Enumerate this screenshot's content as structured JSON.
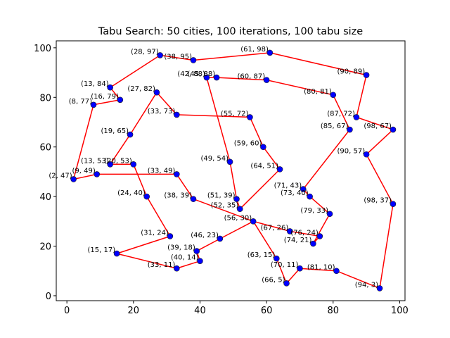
{
  "chart_data": {
    "type": "line",
    "title": "Tabu Search: 50 cities, 100 iterations, 100 tabu size",
    "xlabel": "",
    "ylabel": "",
    "xlim": [
      -3.2,
      101.6
    ],
    "ylim": [
      -2.0,
      102.8
    ],
    "xticks": [
      0,
      20,
      40,
      60,
      80,
      100
    ],
    "yticks": [
      0,
      20,
      40,
      60,
      80,
      100
    ],
    "grid": false,
    "legend": "none",
    "point_color": "#0000ff",
    "point_edge_color": "#1f1f1f",
    "line_color": "#ff0000",
    "cities": [
      {
        "x": 2,
        "y": 47,
        "label": "(2, 47)"
      },
      {
        "x": 9,
        "y": 49,
        "label": "(9, 49)"
      },
      {
        "x": 8,
        "y": 77,
        "label": "(8, 77)"
      },
      {
        "x": 13,
        "y": 84,
        "label": "(13, 84)"
      },
      {
        "x": 13,
        "y": 53,
        "label": "(13, 53)"
      },
      {
        "x": 15,
        "y": 17,
        "label": "(15, 17)"
      },
      {
        "x": 16,
        "y": 79,
        "label": "(16, 79)"
      },
      {
        "x": 19,
        "y": 65,
        "label": "(19, 65)"
      },
      {
        "x": 20,
        "y": 53,
        "label": "(20, 53)"
      },
      {
        "x": 24,
        "y": 40,
        "label": "(24, 40)"
      },
      {
        "x": 27,
        "y": 82,
        "label": "(27, 82)"
      },
      {
        "x": 28,
        "y": 97,
        "label": "(28, 97)"
      },
      {
        "x": 31,
        "y": 24,
        "label": "(31, 24)"
      },
      {
        "x": 33,
        "y": 73,
        "label": "(33, 73)"
      },
      {
        "x": 33,
        "y": 49,
        "label": "(33, 49)"
      },
      {
        "x": 33,
        "y": 11,
        "label": "(33, 11)"
      },
      {
        "x": 38,
        "y": 95,
        "label": "(38, 95)"
      },
      {
        "x": 38,
        "y": 39,
        "label": "(38, 39)"
      },
      {
        "x": 39,
        "y": 18,
        "label": "(39, 18)"
      },
      {
        "x": 40,
        "y": 14,
        "label": "(40, 14)"
      },
      {
        "x": 42,
        "y": 88,
        "label": "(42, 88)"
      },
      {
        "x": 45,
        "y": 88,
        "label": "(45, 88)"
      },
      {
        "x": 46,
        "y": 23,
        "label": "(46, 23)"
      },
      {
        "x": 49,
        "y": 54,
        "label": "(49, 54)"
      },
      {
        "x": 51,
        "y": 39,
        "label": "(51, 39)"
      },
      {
        "x": 52,
        "y": 35,
        "label": "(52, 35)"
      },
      {
        "x": 55,
        "y": 72,
        "label": "(55, 72)"
      },
      {
        "x": 56,
        "y": 30,
        "label": "(56, 30)"
      },
      {
        "x": 59,
        "y": 60,
        "label": "(59, 60)"
      },
      {
        "x": 60,
        "y": 87,
        "label": "(60, 87)"
      },
      {
        "x": 61,
        "y": 98,
        "label": "(61, 98)"
      },
      {
        "x": 63,
        "y": 15,
        "label": "(63, 15)"
      },
      {
        "x": 64,
        "y": 51,
        "label": "(64, 51)"
      },
      {
        "x": 66,
        "y": 5,
        "label": "(66, 5)"
      },
      {
        "x": 67,
        "y": 26,
        "label": "(67, 26)"
      },
      {
        "x": 70,
        "y": 11,
        "label": "(70, 11)"
      },
      {
        "x": 71,
        "y": 43,
        "label": "(71, 43)"
      },
      {
        "x": 73,
        "y": 40,
        "label": "(73, 40)"
      },
      {
        "x": 74,
        "y": 21,
        "label": "(74, 21)"
      },
      {
        "x": 76,
        "y": 24,
        "label": "(76, 24)"
      },
      {
        "x": 79,
        "y": 33,
        "label": "(79, 33)"
      },
      {
        "x": 80,
        "y": 81,
        "label": "(80, 81)"
      },
      {
        "x": 81,
        "y": 10,
        "label": "(81, 10)"
      },
      {
        "x": 85,
        "y": 67,
        "label": "(85, 67)"
      },
      {
        "x": 87,
        "y": 72,
        "label": "(87, 72)"
      },
      {
        "x": 90,
        "y": 89,
        "label": "(90, 89)"
      },
      {
        "x": 90,
        "y": 57,
        "label": "(90, 57)"
      },
      {
        "x": 94,
        "y": 3,
        "label": "(94, 3)"
      },
      {
        "x": 98,
        "y": 67,
        "label": "(98, 67)"
      },
      {
        "x": 98,
        "y": 37,
        "label": "(98, 37)"
      }
    ],
    "tour": [
      [
        2,
        47
      ],
      [
        8,
        77
      ],
      [
        16,
        79
      ],
      [
        13,
        84
      ],
      [
        28,
        97
      ],
      [
        38,
        95
      ],
      [
        61,
        98
      ],
      [
        90,
        89
      ],
      [
        87,
        72
      ],
      [
        98,
        67
      ],
      [
        90,
        57
      ],
      [
        98,
        37
      ],
      [
        94,
        3
      ],
      [
        81,
        10
      ],
      [
        70,
        11
      ],
      [
        66,
        5
      ],
      [
        63,
        15
      ],
      [
        56,
        30
      ],
      [
        67,
        26
      ],
      [
        76,
        24
      ],
      [
        74,
        21
      ],
      [
        79,
        33
      ],
      [
        73,
        40
      ],
      [
        71,
        43
      ],
      [
        85,
        67
      ],
      [
        80,
        81
      ],
      [
        60,
        87
      ],
      [
        45,
        88
      ],
      [
        42,
        88
      ],
      [
        49,
        54
      ],
      [
        51,
        39
      ],
      [
        52,
        35
      ],
      [
        64,
        51
      ],
      [
        59,
        60
      ],
      [
        55,
        72
      ],
      [
        33,
        73
      ],
      [
        27,
        82
      ],
      [
        19,
        65
      ],
      [
        13,
        53
      ],
      [
        20,
        53
      ],
      [
        24,
        40
      ],
      [
        31,
        24
      ],
      [
        15,
        17
      ],
      [
        33,
        11
      ],
      [
        40,
        14
      ],
      [
        39,
        18
      ],
      [
        46,
        23
      ],
      [
        56,
        30
      ],
      [
        38,
        39
      ],
      [
        33,
        49
      ],
      [
        9,
        49
      ],
      [
        2,
        47
      ]
    ]
  }
}
